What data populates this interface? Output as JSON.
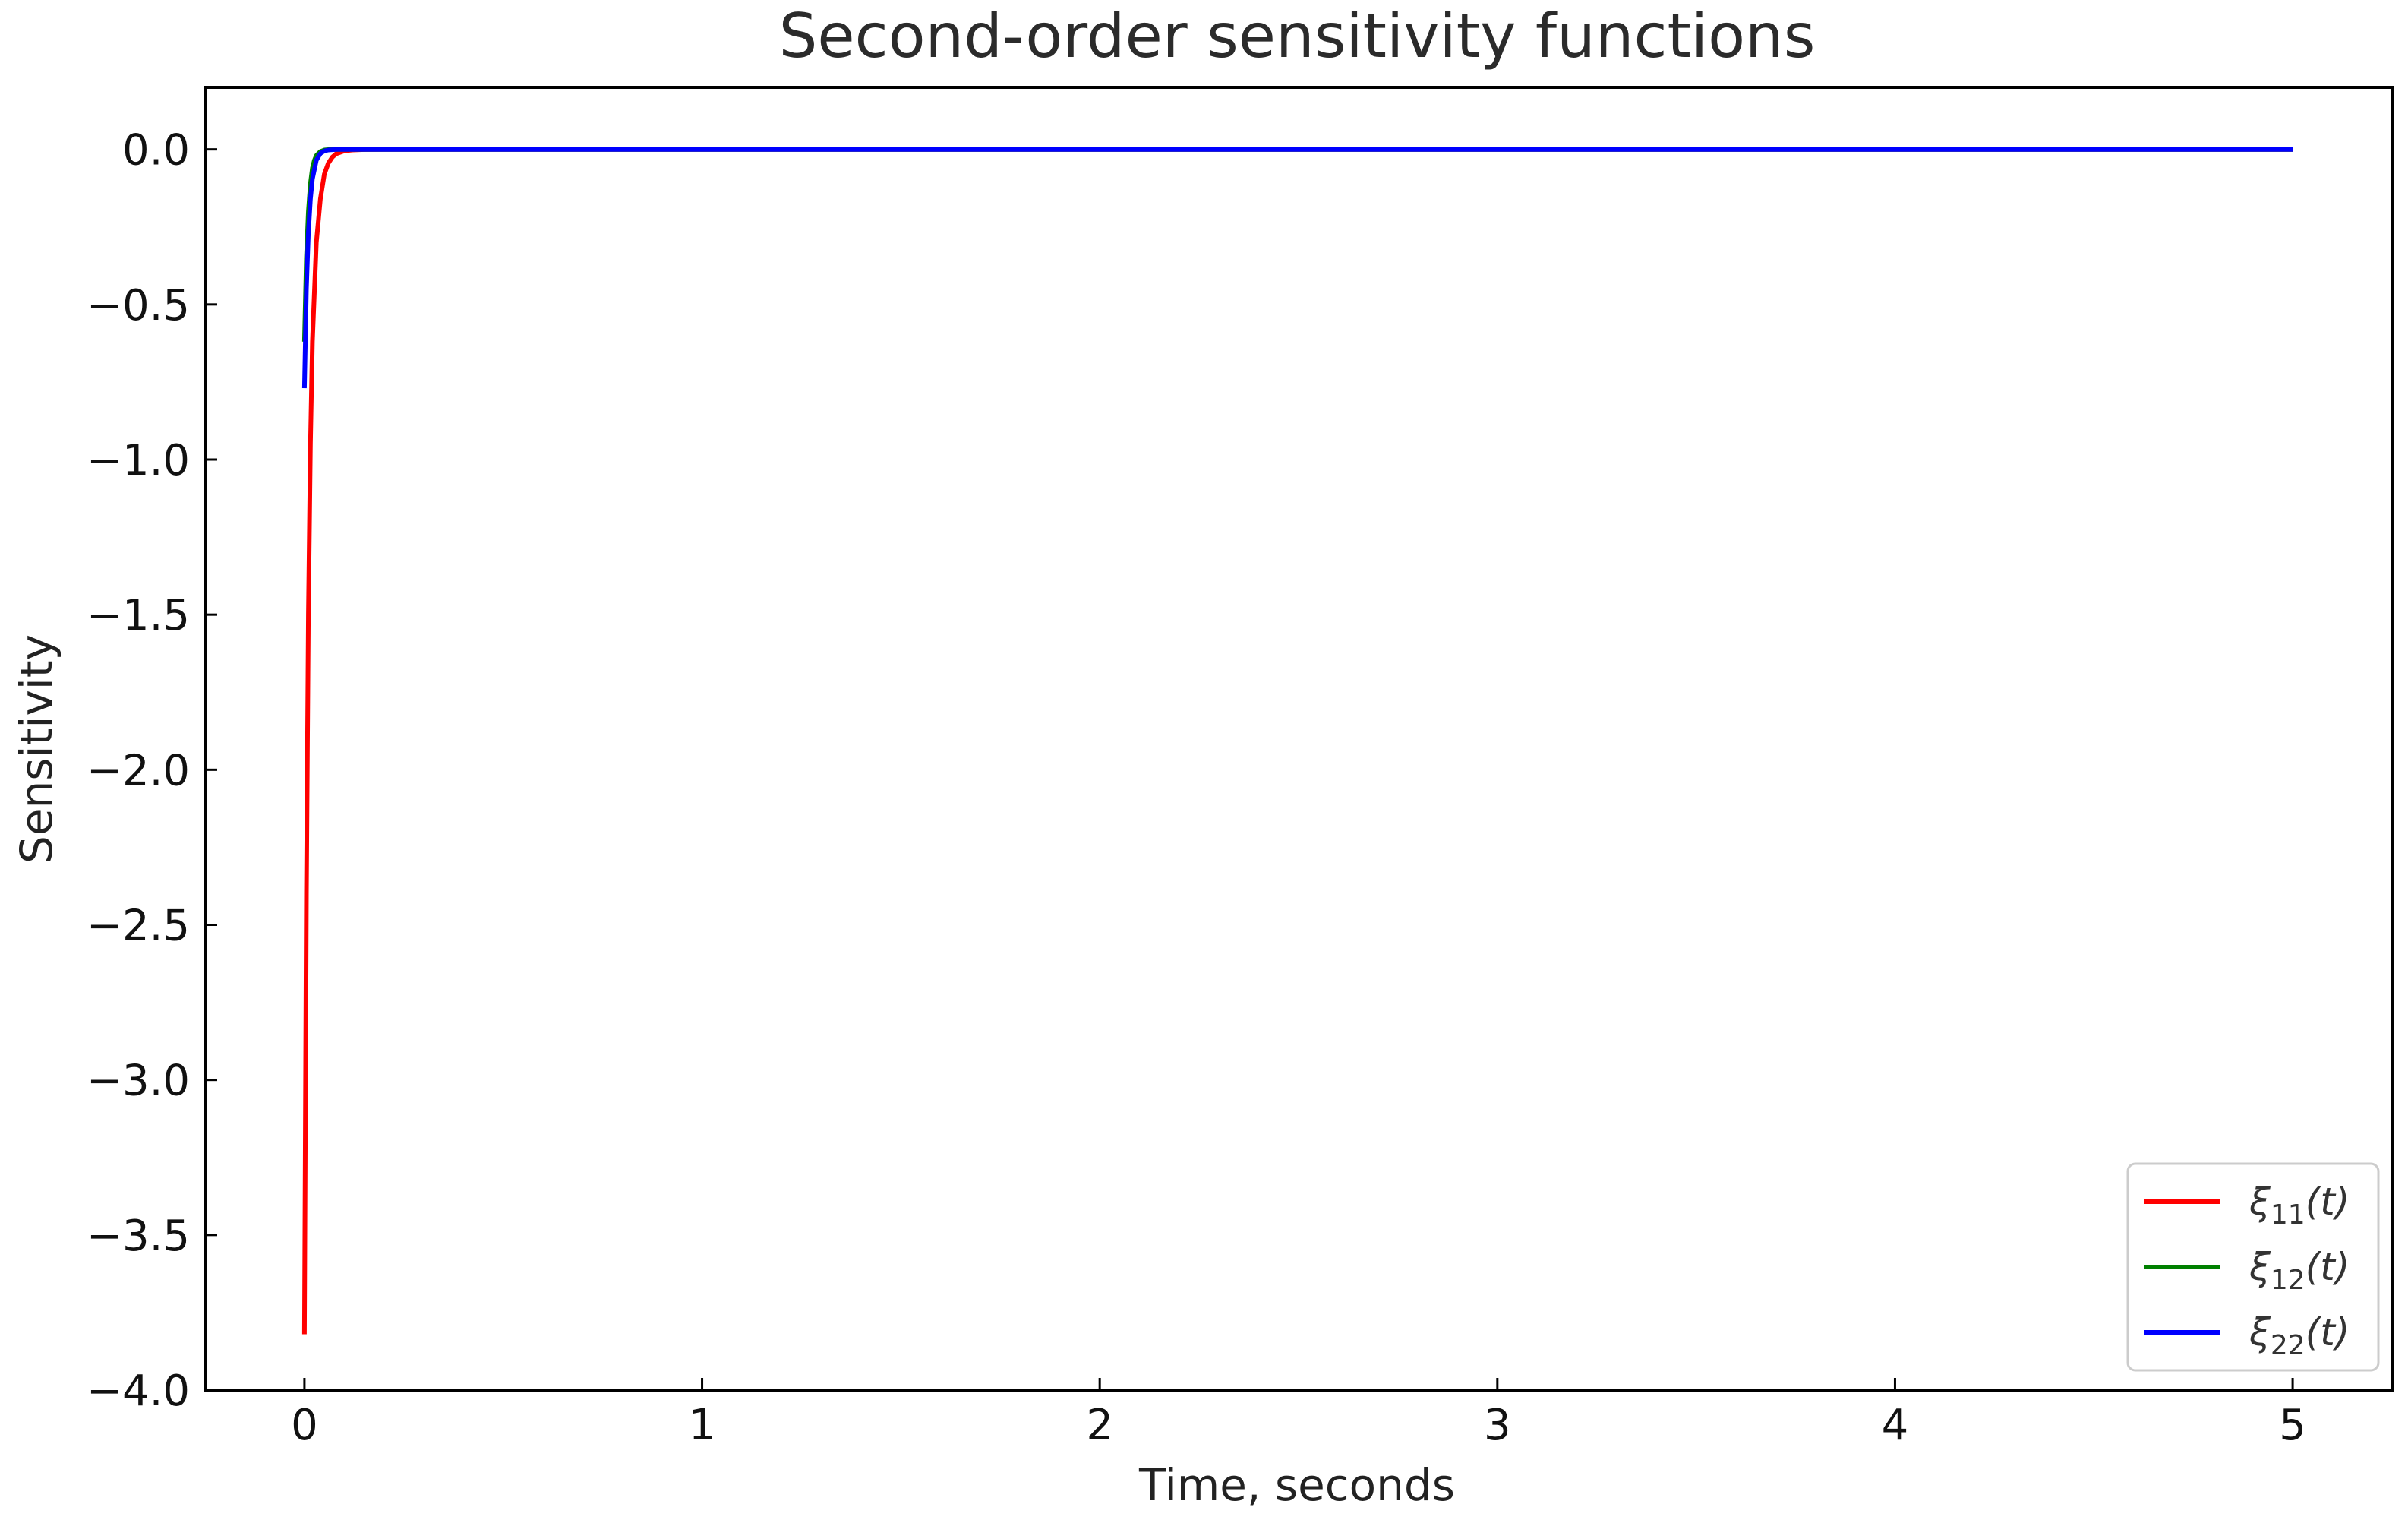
{
  "chart_data": {
    "type": "line",
    "title": "Second-order sensitivity functions",
    "xlabel": "Time, seconds",
    "ylabel": "Sensitivity",
    "xlim": [
      -0.25,
      5.25
    ],
    "ylim": [
      -4.0,
      0.2
    ],
    "xticks": [
      0,
      1,
      2,
      3,
      4,
      5
    ],
    "xtick_labels": [
      "0",
      "1",
      "2",
      "3",
      "4",
      "5"
    ],
    "yticks": [
      0.0,
      -0.5,
      -1.0,
      -1.5,
      -2.0,
      -2.5,
      -3.0,
      -3.5,
      -4.0
    ],
    "ytick_labels": [
      "0.0",
      "−0.5",
      "−1.0",
      "−1.5",
      "−2.0",
      "−2.5",
      "−3.0",
      "−3.5",
      "−4.0"
    ],
    "grid": false,
    "legend_position": "bottom-right",
    "series": [
      {
        "name": "ξ11(t)",
        "legend_base": "ξ",
        "legend_sub": "11",
        "legend_tail": "(t)",
        "color": "#ff0000",
        "x": [
          0,
          0.005,
          0.01,
          0.015,
          0.02,
          0.03,
          0.04,
          0.05,
          0.06,
          0.07,
          0.08,
          0.1,
          0.12,
          0.15,
          0.2,
          0.5,
          1,
          2,
          3,
          4,
          5
        ],
        "y": [
          -3.82,
          -2.4,
          -1.5,
          -0.95,
          -0.62,
          -0.3,
          -0.16,
          -0.08,
          -0.045,
          -0.025,
          -0.014,
          -0.005,
          -0.002,
          -0.0005,
          0,
          0,
          0,
          0,
          0,
          0,
          0
        ]
      },
      {
        "name": "ξ12(t)",
        "legend_base": "ξ",
        "legend_sub": "12",
        "legend_tail": "(t)",
        "color": "#008000",
        "x": [
          0,
          0.005,
          0.01,
          0.015,
          0.02,
          0.025,
          0.03,
          0.04,
          0.05,
          0.06,
          0.08,
          0.1,
          0.2,
          0.5,
          1,
          2,
          3,
          4,
          5
        ],
        "y": [
          -0.62,
          -0.35,
          -0.2,
          -0.11,
          -0.06,
          -0.035,
          -0.02,
          -0.007,
          -0.002,
          -0.0008,
          0,
          0,
          0,
          0,
          0,
          0,
          0,
          0,
          0
        ]
      },
      {
        "name": "ξ22(t)",
        "legend_base": "ξ",
        "legend_sub": "22",
        "legend_tail": "(t)",
        "color": "#0000ff",
        "x": [
          0,
          0.005,
          0.01,
          0.015,
          0.02,
          0.03,
          0.04,
          0.05,
          0.06,
          0.08,
          0.1,
          0.15,
          0.2,
          0.5,
          1,
          2,
          3,
          4,
          5
        ],
        "y": [
          -0.77,
          -0.45,
          -0.27,
          -0.16,
          -0.095,
          -0.035,
          -0.013,
          -0.005,
          -0.002,
          -0.0003,
          0,
          0,
          0,
          0,
          0,
          0,
          0,
          0,
          0
        ]
      }
    ]
  }
}
